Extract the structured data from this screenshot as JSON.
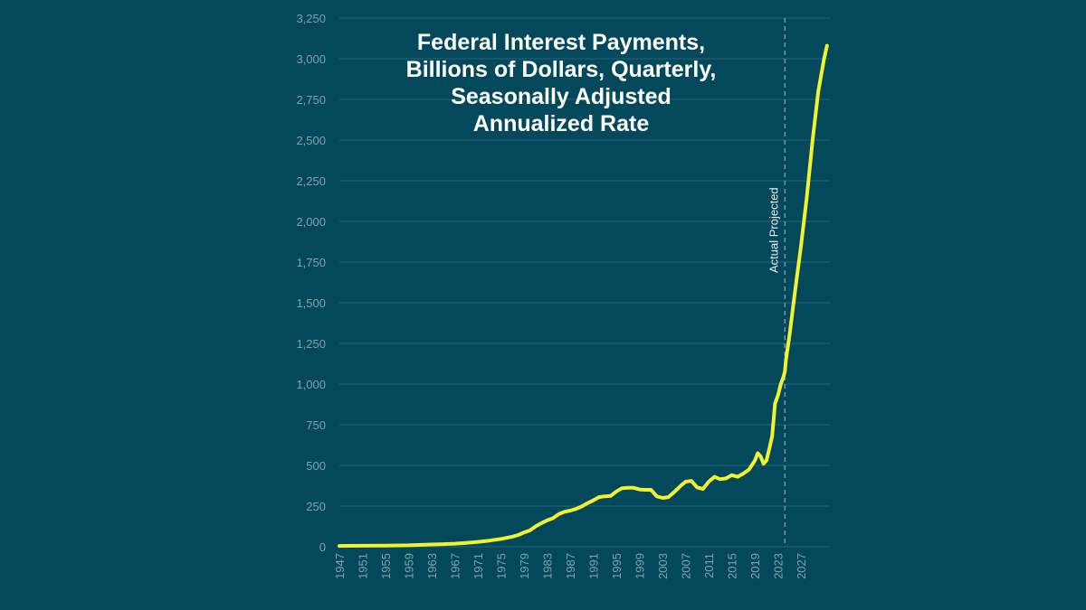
{
  "chart_data": {
    "type": "line",
    "title_lines": [
      "Federal Interest Payments,",
      "Billions of Dollars, Quarterly,",
      "Seasonally Adjusted",
      "Annualized Rate"
    ],
    "ylim": [
      0,
      3250
    ],
    "y_ticks": [
      "0",
      "250",
      "500",
      "750",
      "1,000",
      "1,250",
      "1,500",
      "1,750",
      "2,000",
      "2,250",
      "2,500",
      "2,750",
      "3,000",
      "3,250"
    ],
    "y_tick_values": [
      0,
      250,
      500,
      750,
      1000,
      1250,
      1500,
      1750,
      2000,
      2250,
      2500,
      2750,
      3000,
      3250
    ],
    "x_ticks": [
      "1947",
      "1951",
      "1955",
      "1959",
      "1963",
      "1967",
      "1971",
      "1975",
      "1979",
      "1983",
      "1987",
      "1991",
      "1995",
      "1999",
      "2003",
      "2007",
      "2011",
      "2015",
      "2019",
      "2023",
      "2027"
    ],
    "xlim": [
      1947,
      2032
    ],
    "grid": true,
    "line_color": "#f2f230",
    "grid_color": "#2a6578",
    "divider": {
      "x": 2024.2,
      "label": "Actual Projected"
    },
    "series": [
      {
        "x": [
          1947,
          1951,
          1955,
          1959,
          1963,
          1965,
          1967,
          1969,
          1971,
          1973,
          1975,
          1977,
          1978,
          1979,
          1980,
          1981,
          1982,
          1983,
          1984,
          1985,
          1986,
          1987,
          1988,
          1989,
          1990,
          1991,
          1992,
          1993,
          1994,
          1995,
          1996,
          1997,
          1998,
          1999,
          2000,
          2001,
          2002,
          2003,
          2004,
          2005,
          2006,
          2007,
          2008,
          2009,
          2010,
          2011,
          2012,
          2013,
          2014,
          2015,
          2016,
          2017,
          2018,
          2019,
          2019.5,
          2020,
          2020.5,
          2021,
          2021.5,
          2022,
          2022.5,
          2023,
          2023.5,
          2024,
          2024.2,
          2024.4,
          2025,
          2026,
          2027,
          2028,
          2029,
          2030,
          2031,
          2031.5
        ],
        "values": [
          5,
          6,
          7,
          9,
          14,
          16,
          19,
          24,
          30,
          38,
          48,
          62,
          72,
          88,
          100,
          125,
          145,
          162,
          175,
          200,
          215,
          222,
          232,
          248,
          268,
          285,
          305,
          310,
          312,
          340,
          360,
          362,
          362,
          352,
          350,
          350,
          310,
          300,
          305,
          335,
          370,
          400,
          405,
          365,
          355,
          400,
          430,
          415,
          420,
          440,
          430,
          450,
          475,
          530,
          575,
          555,
          510,
          530,
          600,
          680,
          880,
          930,
          1000,
          1050,
          1080,
          1150,
          1300,
          1580,
          1850,
          2150,
          2500,
          2800,
          3000,
          3080
        ]
      }
    ]
  }
}
